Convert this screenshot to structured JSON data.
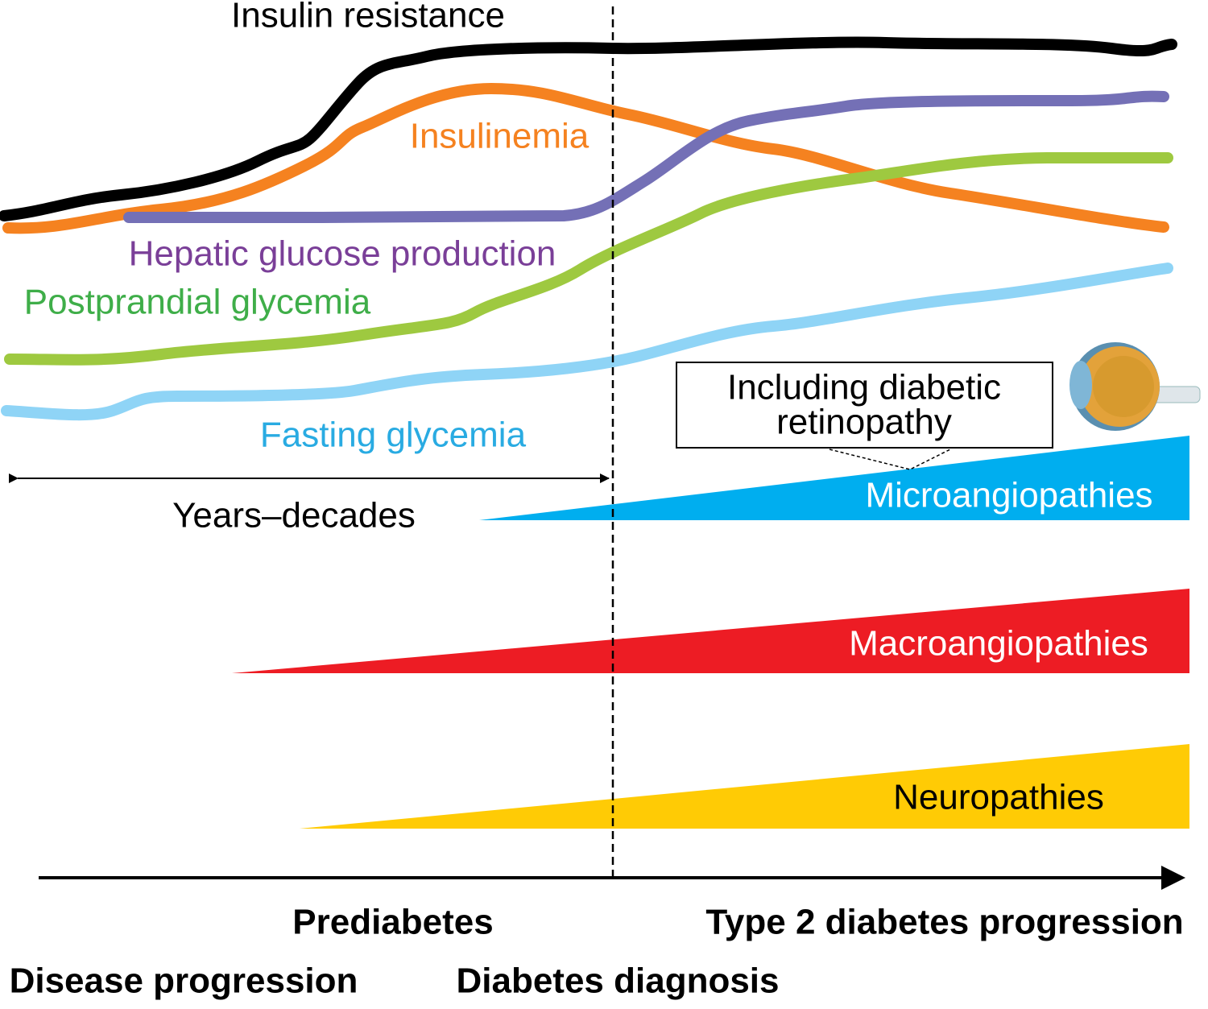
{
  "curves": {
    "insulin_resistance": "Insulin resistance",
    "insulinemia": "Insulinemia",
    "hepatic_glucose_production": "Hepatic glucose production",
    "postprandial_glycemia": "Postprandial glycemia",
    "fasting_glycemia": "Fasting glycemia"
  },
  "duration": "Years–decades",
  "callout": {
    "line1": "Including diabetic",
    "line2": "retinopathy"
  },
  "complications": [
    "Microangiopathies",
    "Macroangiopathies",
    "Neuropathies"
  ],
  "axis": {
    "prediabetes": "Prediabetes",
    "type2": "Type 2 diabetes progression",
    "disease_progression": "Disease progression",
    "diagnosis": "Diabetes diagnosis"
  }
}
